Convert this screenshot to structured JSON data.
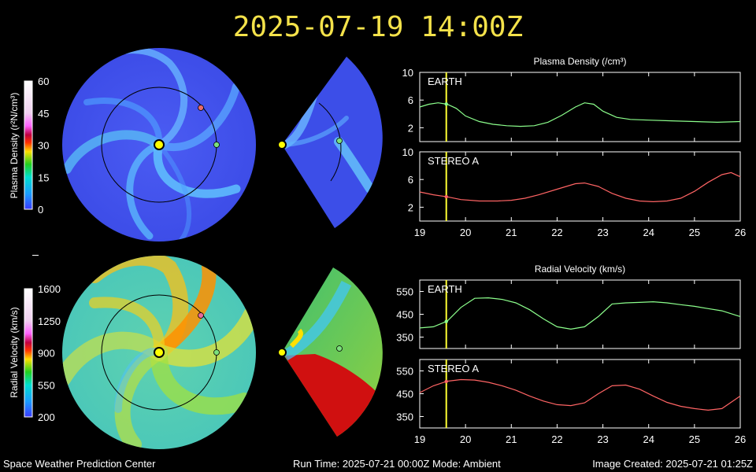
{
  "header": {
    "title": "2025-07-19 14:00Z"
  },
  "footer": {
    "org": "Space Weather Prediction Center",
    "run_time": "Run Time: 2025-07-21 00:00Z  Mode: Ambient",
    "image_created": "Image Created: 2025-07-21 01:25Z"
  },
  "colors": {
    "title": "#f4e24a",
    "earth_series": "#8cff8c",
    "stereo_series": "#ff6464",
    "current_time_line": "#ffff33",
    "sun": "#ffff00"
  },
  "colorbars": {
    "density": {
      "label": "Plasma Density (r²N/cm³)",
      "ticks": [
        "60",
        "45",
        "30",
        "15",
        "0"
      ]
    },
    "velocity": {
      "label": "Radial Velocity (km/s)",
      "ticks": [
        "1600",
        "1250",
        "900",
        "550",
        "200"
      ]
    }
  },
  "chart_data": [
    {
      "type": "line",
      "title": "Plasma Density (/cm³)",
      "xlabel": "",
      "ylabel": "",
      "xlim": [
        19,
        26
      ],
      "x_ticks": [
        "19",
        "20",
        "21",
        "22",
        "23",
        "24",
        "25",
        "26"
      ],
      "current_time": 19.58,
      "panels": [
        {
          "label": "EARTH",
          "color": "#8cff8c",
          "ylim": [
            0,
            10
          ],
          "y_ticks": [
            2,
            6,
            10
          ],
          "x": [
            19.0,
            19.2,
            19.4,
            19.6,
            19.8,
            20.0,
            20.3,
            20.6,
            20.9,
            21.2,
            21.5,
            21.8,
            22.1,
            22.4,
            22.6,
            22.8,
            23.0,
            23.3,
            23.6,
            24.0,
            24.5,
            25.0,
            25.5,
            26.0
          ],
          "y": [
            5.0,
            5.4,
            5.6,
            5.4,
            4.8,
            3.7,
            2.9,
            2.5,
            2.3,
            2.2,
            2.3,
            2.8,
            3.8,
            5.0,
            5.6,
            5.4,
            4.4,
            3.5,
            3.2,
            3.1,
            3.0,
            2.9,
            2.8,
            2.9
          ]
        },
        {
          "label": "STEREO A",
          "color": "#ff6464",
          "ylim": [
            0,
            10
          ],
          "y_ticks": [
            2,
            6,
            10
          ],
          "x": [
            19.0,
            19.3,
            19.6,
            19.9,
            20.3,
            20.7,
            21.0,
            21.3,
            21.6,
            22.0,
            22.4,
            22.6,
            22.9,
            23.2,
            23.5,
            23.8,
            24.1,
            24.4,
            24.7,
            25.0,
            25.3,
            25.6,
            25.8,
            26.0
          ],
          "y": [
            4.2,
            3.8,
            3.5,
            3.1,
            2.9,
            2.9,
            3.0,
            3.3,
            3.8,
            4.6,
            5.4,
            5.5,
            5.0,
            4.0,
            3.3,
            2.9,
            2.8,
            2.9,
            3.3,
            4.3,
            5.6,
            6.7,
            7.0,
            6.4
          ]
        }
      ]
    },
    {
      "type": "line",
      "title": "Radial Velocity (km/s)",
      "xlabel": "",
      "ylabel": "",
      "xlim": [
        19,
        26
      ],
      "x_ticks": [
        "19",
        "20",
        "21",
        "22",
        "23",
        "24",
        "25",
        "26"
      ],
      "current_time": 19.58,
      "panels": [
        {
          "label": "EARTH",
          "color": "#8cff8c",
          "ylim": [
            300,
            600
          ],
          "y_ticks": [
            350,
            450,
            550
          ],
          "x": [
            19.0,
            19.3,
            19.6,
            19.9,
            20.2,
            20.5,
            20.8,
            21.1,
            21.4,
            21.7,
            22.0,
            22.3,
            22.6,
            22.9,
            23.2,
            23.5,
            23.8,
            24.1,
            24.4,
            24.7,
            25.0,
            25.3,
            25.6,
            26.0
          ],
          "y": [
            390,
            395,
            420,
            480,
            520,
            522,
            515,
            500,
            470,
            430,
            395,
            385,
            395,
            440,
            495,
            500,
            502,
            505,
            500,
            492,
            485,
            475,
            465,
            440
          ]
        },
        {
          "label": "STEREO A",
          "color": "#ff6464",
          "ylim": [
            300,
            600
          ],
          "y_ticks": [
            350,
            450,
            550
          ],
          "x": [
            19.0,
            19.3,
            19.6,
            19.9,
            20.2,
            20.5,
            20.8,
            21.1,
            21.4,
            21.7,
            22.0,
            22.3,
            22.6,
            22.9,
            23.2,
            23.5,
            23.8,
            24.1,
            24.4,
            24.7,
            25.0,
            25.3,
            25.6,
            26.0
          ],
          "y": [
            455,
            485,
            505,
            512,
            510,
            500,
            485,
            465,
            440,
            418,
            402,
            398,
            410,
            450,
            485,
            488,
            470,
            440,
            412,
            395,
            385,
            378,
            385,
            440
          ]
        }
      ]
    }
  ]
}
